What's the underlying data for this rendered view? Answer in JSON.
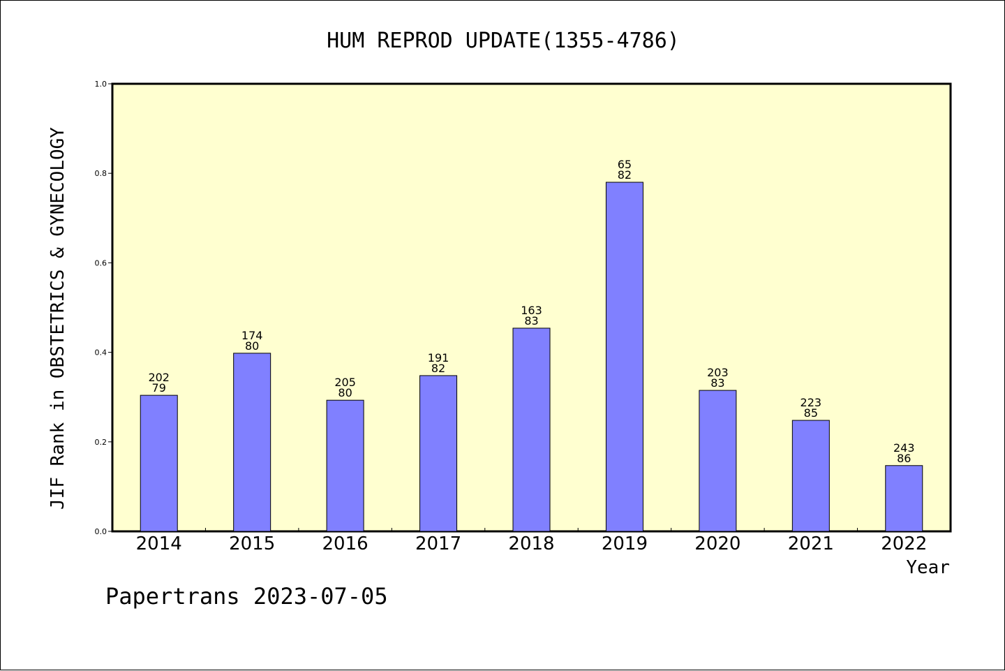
{
  "chart_data": {
    "type": "bar",
    "title": "HUM REPROD UPDATE(1355-4786)",
    "xlabel": "Year",
    "ylabel": "JIF Rank in OBSTETRICS & GYNECOLOGY",
    "footer": "Papertrans 2023-07-05",
    "ylim": [
      0,
      1.0
    ],
    "yticks": [
      "0.0",
      "0.2",
      "0.4",
      "0.6",
      "0.8",
      "1.0"
    ],
    "categories": [
      "2014",
      "2015",
      "2016",
      "2017",
      "2018",
      "2019",
      "2020",
      "2021",
      "2022"
    ],
    "values": [
      0.304,
      0.398,
      0.293,
      0.348,
      0.454,
      0.78,
      0.315,
      0.248,
      0.147
    ],
    "labels_top": [
      "202",
      "174",
      "205",
      "191",
      "163",
      "65",
      "203",
      "223",
      "243"
    ],
    "labels_bottom": [
      "79",
      "80",
      "80",
      "82",
      "83",
      "82",
      "83",
      "85",
      "86"
    ],
    "grid": false,
    "colors": {
      "bar": "#8080ff",
      "plot_bg": "#ffffd0",
      "axis": "#000000"
    }
  }
}
